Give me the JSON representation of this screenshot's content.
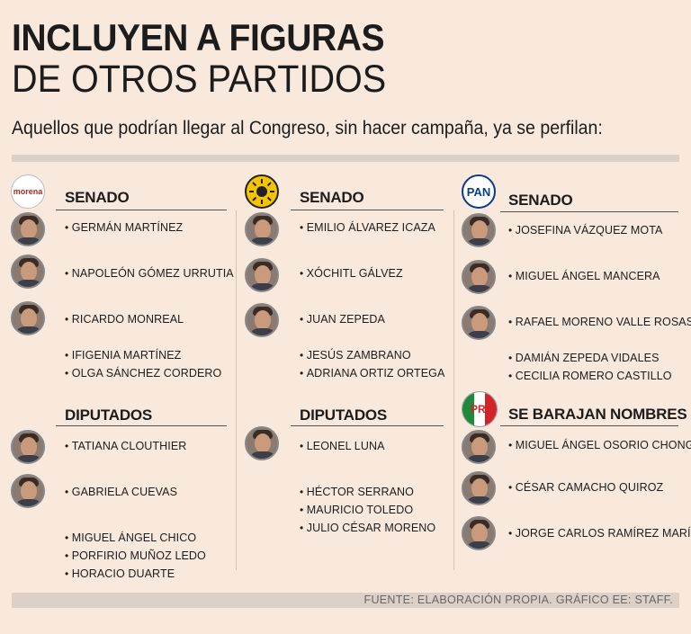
{
  "header": {
    "title_line1": "INCLUYEN A FIGURAS",
    "title_line2": "DE OTROS PARTIDOS",
    "subtitle": "Aquellos que podrían llegar al Congreso, sin hacer campaña, ya se perfilan:"
  },
  "columns": [
    {
      "logo_text": "morena",
      "senado_label": "SENADO",
      "senado": [
        "Germán Martínez",
        "Napoleón Gómez Urrutia",
        "Ricardo Monreal",
        "Ifigenia Martínez",
        "Olga Sánchez Cordero"
      ],
      "diputados_label": "DIPUTADOS",
      "diputados": [
        "Tatiana Clouthier",
        "Gabriela Cuevas",
        "Miguel Ángel Chico",
        "Porfirio Muñoz Ledo",
        "Horacio Duarte"
      ]
    },
    {
      "logo_text": "PRD",
      "senado_label": "SENADO",
      "senado": [
        "Emilio Álvarez Icaza",
        "Xóchitl Gálvez",
        "Juan Zepeda",
        "Jesús Zambrano",
        "Adriana Ortiz Ortega"
      ],
      "diputados_label": "DIPUTADOS",
      "diputados": [
        "Leonel Luna",
        "Héctor Serrano",
        "Mauricio Toledo",
        "Julio César Moreno"
      ]
    },
    {
      "logo_text": "PAN",
      "senado_label": "SENADO",
      "senado": [
        "Josefina Vázquez Mota",
        "Miguel Ángel Mancera",
        "Rafael Moreno Valle Rosas",
        "Damián Zepeda Vidales",
        "Cecilia Romero Castillo"
      ],
      "pri_logo_text": "PRI",
      "pri_label": "SE BARAJAN NOMBRES",
      "pri": [
        "Miguel Ángel Osorio Chong",
        "César Camacho Quiroz",
        "Jorge Carlos Ramírez Marín"
      ]
    }
  ],
  "footer": {
    "source": "FUENTE: ELABORACIÓN PROPIA.  GRÁFICO EE: STAFF."
  },
  "colors": {
    "background": "#f9e9dc",
    "morena": "#b5261e",
    "prd": "#f5c400",
    "pan": "#0a3a8c",
    "pri_green": "#1f8a3c",
    "pri_red": "#d2222a"
  }
}
